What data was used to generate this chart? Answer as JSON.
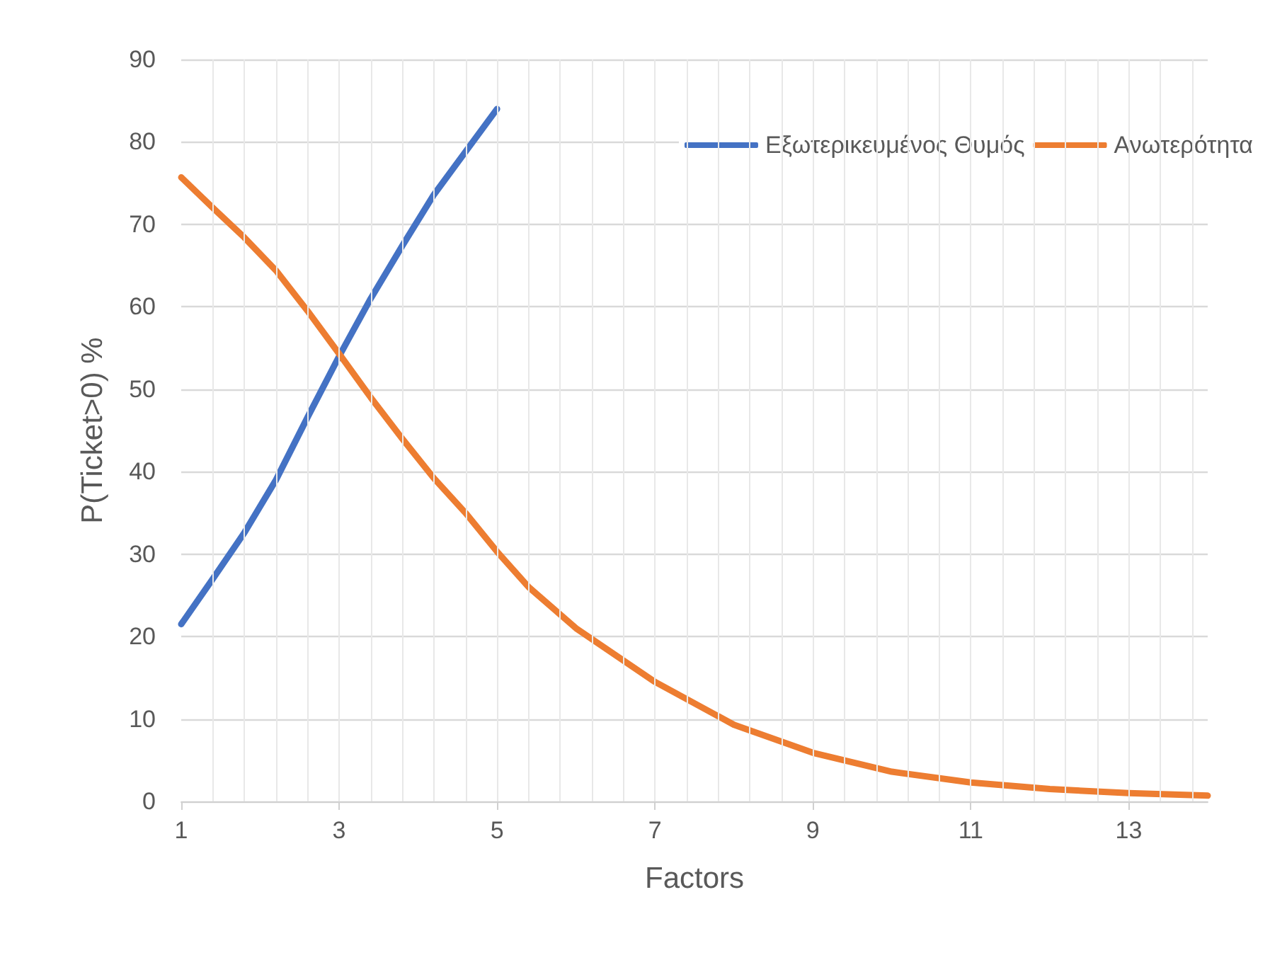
{
  "chart_data": {
    "type": "line",
    "xlabel": "Factors",
    "ylabel": "P(Ticket>0) %",
    "xlim": [
      1,
      14
    ],
    "xticks": [
      1,
      3,
      5,
      7,
      9,
      11,
      13
    ],
    "ylim": [
      0,
      90
    ],
    "yticks": [
      0,
      10,
      20,
      30,
      40,
      50,
      60,
      70,
      80,
      90
    ],
    "grid": true,
    "legend": "top right",
    "marker": "none",
    "line_style": "solid",
    "series": [
      {
        "name": "Εξωτερικευμένος Θυμός",
        "color": "#4472c4",
        "x": [
          1,
          1.4,
          1.8,
          2.2,
          2.6,
          3,
          3.4,
          3.8,
          4.2,
          4.6,
          5
        ],
        "values": [
          21.5,
          27,
          32.6,
          39,
          46.6,
          54,
          61,
          67.4,
          73.6,
          78.8,
          84
        ]
      },
      {
        "name": "Ανωτερότητα",
        "color": "#ed7d31",
        "x": [
          1,
          1.4,
          1.8,
          2.2,
          2.6,
          3,
          3.4,
          3.8,
          4.2,
          4.6,
          5,
          5.4,
          6,
          7,
          8,
          9,
          10,
          11,
          12,
          13,
          14
        ],
        "values": [
          75.7,
          72,
          68.4,
          64.4,
          59.5,
          54.3,
          49,
          44,
          39.2,
          35,
          30.3,
          26,
          21,
          14.5,
          9.3,
          5.9,
          3.6,
          2.3,
          1.5,
          1,
          0.7
        ]
      }
    ]
  }
}
